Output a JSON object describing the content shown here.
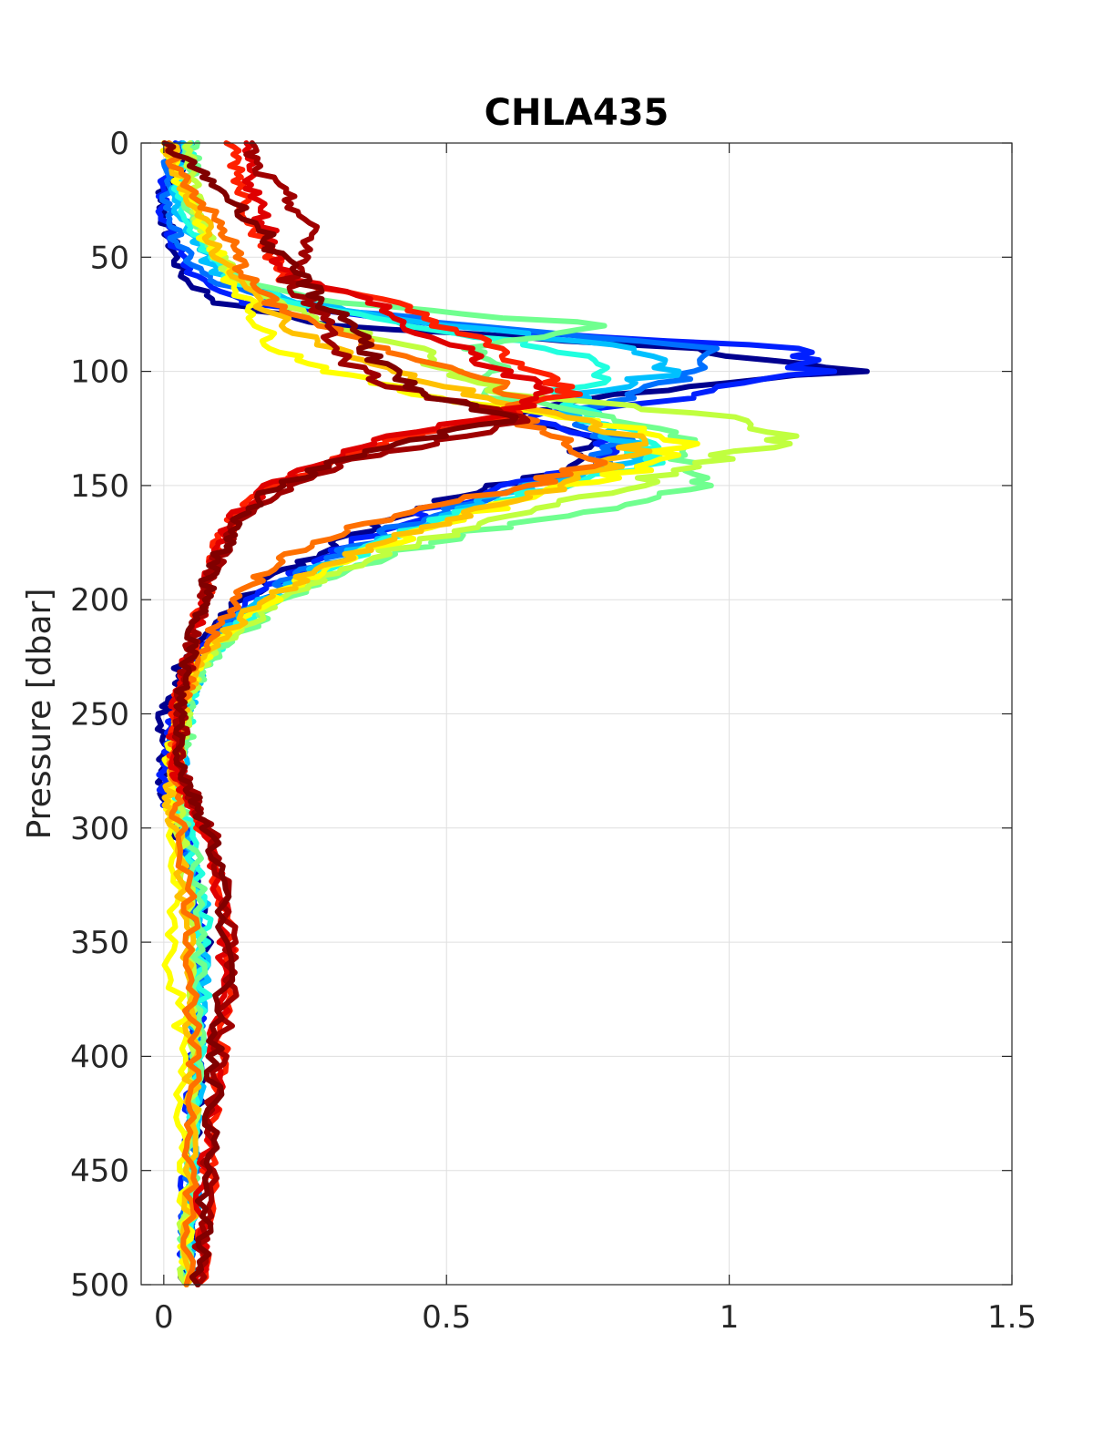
{
  "chart_data": {
    "type": "line",
    "title": "CHLA435",
    "xlabel": "",
    "ylabel": "Pressure [dbar]",
    "xlim": [
      -0.04,
      1.5
    ],
    "ylim": [
      0,
      500
    ],
    "y_reversed": true,
    "xticks": [
      0,
      0.5,
      1,
      1.5
    ],
    "xtick_labels": [
      "0",
      "0.5",
      "1",
      "1.5"
    ],
    "yticks": [
      0,
      50,
      100,
      150,
      200,
      250,
      300,
      350,
      400,
      450,
      500
    ],
    "ytick_labels": [
      "0",
      "50",
      "100",
      "150",
      "200",
      "250",
      "300",
      "350",
      "400",
      "450",
      "500"
    ],
    "grid": true,
    "legend": false,
    "colormap": "jet",
    "pressure_levels": [
      0,
      10,
      20,
      30,
      40,
      50,
      60,
      70,
      80,
      90,
      100,
      110,
      120,
      130,
      140,
      150,
      160,
      170,
      180,
      190,
      200,
      210,
      220,
      230,
      240,
      250,
      260,
      270,
      280,
      290,
      300,
      320,
      340,
      360,
      380,
      400,
      420,
      440,
      460,
      480,
      500
    ],
    "series": [
      {
        "color": "#00008f",
        "values": [
          0.06,
          0.03,
          0.0,
          0.0,
          0.01,
          0.02,
          0.04,
          0.1,
          0.3,
          0.95,
          1.2,
          0.8,
          0.6,
          0.75,
          0.75,
          0.6,
          0.45,
          0.35,
          0.27,
          0.2,
          0.14,
          0.1,
          0.07,
          0.03,
          0.02,
          0.0,
          0.0,
          0.0,
          -0.01,
          0.0,
          0.02,
          0.05,
          0.07,
          0.07,
          0.06,
          0.06,
          0.06,
          0.05,
          0.05,
          0.05,
          0.04
        ]
      },
      {
        "color": "#0020ff",
        "values": [
          0.03,
          0.02,
          -0.01,
          0.0,
          0.01,
          0.03,
          0.06,
          0.15,
          0.5,
          1.1,
          1.15,
          0.95,
          0.65,
          0.78,
          0.8,
          0.62,
          0.48,
          0.38,
          0.3,
          0.22,
          0.16,
          0.11,
          0.08,
          0.05,
          0.03,
          0.02,
          0.01,
          0.01,
          0.0,
          0.01,
          0.03,
          0.05,
          0.06,
          0.07,
          0.06,
          0.05,
          0.05,
          0.05,
          0.04,
          0.04,
          0.04
        ]
      },
      {
        "color": "#0070ff",
        "values": [
          0.02,
          0.01,
          0.0,
          0.01,
          0.02,
          0.04,
          0.08,
          0.2,
          0.55,
          1.0,
          0.95,
          0.85,
          0.7,
          0.8,
          0.78,
          0.64,
          0.5,
          0.4,
          0.31,
          0.23,
          0.17,
          0.12,
          0.09,
          0.06,
          0.04,
          0.03,
          0.02,
          0.02,
          0.02,
          0.02,
          0.03,
          0.05,
          0.06,
          0.06,
          0.06,
          0.06,
          0.05,
          0.05,
          0.05,
          0.04,
          0.04
        ]
      },
      {
        "color": "#00c0ff",
        "values": [
          0.04,
          0.03,
          0.02,
          0.03,
          0.05,
          0.07,
          0.11,
          0.25,
          0.5,
          0.85,
          0.9,
          0.75,
          0.72,
          0.82,
          0.83,
          0.66,
          0.52,
          0.42,
          0.33,
          0.25,
          0.18,
          0.13,
          0.09,
          0.06,
          0.05,
          0.04,
          0.03,
          0.03,
          0.03,
          0.03,
          0.04,
          0.06,
          0.07,
          0.07,
          0.06,
          0.06,
          0.06,
          0.05,
          0.05,
          0.05,
          0.04
        ]
      },
      {
        "color": "#20ffdf",
        "values": [
          0.05,
          0.04,
          0.03,
          0.04,
          0.06,
          0.08,
          0.12,
          0.22,
          0.45,
          0.7,
          0.8,
          0.7,
          0.75,
          0.85,
          0.86,
          0.7,
          0.55,
          0.44,
          0.34,
          0.26,
          0.19,
          0.14,
          0.1,
          0.07,
          0.05,
          0.04,
          0.04,
          0.03,
          0.03,
          0.03,
          0.04,
          0.06,
          0.07,
          0.07,
          0.07,
          0.06,
          0.06,
          0.05,
          0.05,
          0.05,
          0.04
        ]
      },
      {
        "color": "#70ff8f",
        "values": [
          0.05,
          0.05,
          0.04,
          0.05,
          0.07,
          0.1,
          0.14,
          0.3,
          0.78,
          0.55,
          0.6,
          0.55,
          0.8,
          0.95,
          0.9,
          0.96,
          0.8,
          0.55,
          0.4,
          0.3,
          0.22,
          0.16,
          0.11,
          0.07,
          0.05,
          0.04,
          0.04,
          0.03,
          0.03,
          0.03,
          0.04,
          0.06,
          0.06,
          0.06,
          0.06,
          0.06,
          0.05,
          0.05,
          0.05,
          0.04,
          0.04
        ]
      },
      {
        "color": "#c0ff3f",
        "values": [
          0.04,
          0.05,
          0.05,
          0.06,
          0.08,
          0.1,
          0.13,
          0.2,
          0.3,
          0.45,
          0.5,
          0.62,
          0.98,
          1.1,
          0.95,
          0.82,
          0.68,
          0.52,
          0.38,
          0.28,
          0.21,
          0.15,
          0.1,
          0.06,
          0.05,
          0.04,
          0.03,
          0.03,
          0.02,
          0.02,
          0.03,
          0.04,
          0.05,
          0.05,
          0.05,
          0.05,
          0.05,
          0.05,
          0.04,
          0.04,
          0.04
        ]
      },
      {
        "color": "#ffff00",
        "values": [
          0.0,
          0.02,
          0.03,
          0.05,
          0.07,
          0.1,
          0.12,
          0.15,
          0.17,
          0.2,
          0.3,
          0.45,
          0.72,
          0.92,
          0.88,
          0.72,
          0.58,
          0.46,
          0.35,
          0.26,
          0.19,
          0.13,
          0.09,
          0.06,
          0.04,
          0.03,
          0.02,
          0.01,
          0.01,
          0.01,
          0.01,
          0.02,
          0.02,
          0.01,
          0.03,
          0.03,
          0.03,
          0.04,
          0.04,
          0.04,
          0.04
        ]
      },
      {
        "color": "#ffc000",
        "values": [
          0.01,
          0.02,
          0.04,
          0.06,
          0.08,
          0.1,
          0.13,
          0.17,
          0.22,
          0.3,
          0.4,
          0.55,
          0.7,
          0.85,
          0.8,
          0.7,
          0.56,
          0.44,
          0.33,
          0.25,
          0.18,
          0.13,
          0.09,
          0.06,
          0.04,
          0.03,
          0.02,
          0.02,
          0.01,
          0.01,
          0.02,
          0.03,
          0.04,
          0.04,
          0.05,
          0.05,
          0.05,
          0.05,
          0.05,
          0.04,
          0.04
        ]
      },
      {
        "color": "#ff7000",
        "values": [
          0.0,
          0.02,
          0.05,
          0.08,
          0.11,
          0.13,
          0.15,
          0.19,
          0.28,
          0.38,
          0.55,
          0.62,
          0.62,
          0.7,
          0.75,
          0.65,
          0.45,
          0.32,
          0.23,
          0.17,
          0.13,
          0.1,
          0.07,
          0.05,
          0.04,
          0.03,
          0.02,
          0.02,
          0.02,
          0.02,
          0.03,
          0.04,
          0.05,
          0.05,
          0.05,
          0.05,
          0.05,
          0.05,
          0.05,
          0.04,
          0.04
        ]
      },
      {
        "color": "#ff2000",
        "values": [
          0.12,
          0.13,
          0.14,
          0.15,
          0.17,
          0.19,
          0.22,
          0.4,
          0.5,
          0.58,
          0.65,
          0.72,
          0.6,
          0.4,
          0.3,
          0.2,
          0.14,
          0.11,
          0.09,
          0.08,
          0.07,
          0.06,
          0.05,
          0.04,
          0.03,
          0.02,
          0.02,
          0.02,
          0.03,
          0.05,
          0.07,
          0.09,
          0.11,
          0.12,
          0.11,
          0.1,
          0.09,
          0.08,
          0.08,
          0.07,
          0.06
        ]
      },
      {
        "color": "#df0000",
        "values": [
          0.14,
          0.15,
          0.16,
          0.17,
          0.19,
          0.2,
          0.24,
          0.38,
          0.42,
          0.52,
          0.6,
          0.68,
          0.58,
          0.38,
          0.28,
          0.19,
          0.14,
          0.11,
          0.09,
          0.08,
          0.07,
          0.06,
          0.05,
          0.04,
          0.03,
          0.02,
          0.02,
          0.02,
          0.03,
          0.05,
          0.07,
          0.09,
          0.11,
          0.11,
          0.1,
          0.09,
          0.09,
          0.08,
          0.07,
          0.07,
          0.06
        ]
      },
      {
        "color": "#9f0000",
        "values": [
          0.15,
          0.16,
          0.2,
          0.24,
          0.26,
          0.25,
          0.22,
          0.26,
          0.3,
          0.3,
          0.35,
          0.45,
          0.66,
          0.5,
          0.32,
          0.22,
          0.16,
          0.12,
          0.1,
          0.08,
          0.07,
          0.06,
          0.05,
          0.04,
          0.03,
          0.03,
          0.03,
          0.03,
          0.04,
          0.06,
          0.08,
          0.1,
          0.12,
          0.12,
          0.11,
          0.1,
          0.09,
          0.08,
          0.08,
          0.07,
          0.06
        ]
      },
      {
        "color": "#800000",
        "values": [
          0.0,
          0.05,
          0.1,
          0.14,
          0.18,
          0.2,
          0.25,
          0.28,
          0.34,
          0.36,
          0.4,
          0.44,
          0.62,
          0.45,
          0.3,
          0.2,
          0.15,
          0.12,
          0.1,
          0.08,
          0.07,
          0.06,
          0.05,
          0.04,
          0.03,
          0.03,
          0.03,
          0.03,
          0.04,
          0.06,
          0.08,
          0.1,
          0.11,
          0.11,
          0.1,
          0.09,
          0.09,
          0.08,
          0.07,
          0.07,
          0.06
        ]
      }
    ]
  }
}
